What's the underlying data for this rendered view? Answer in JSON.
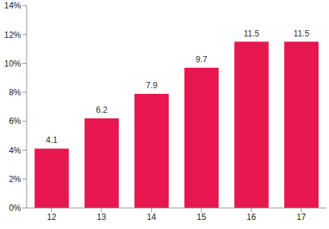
{
  "chart_data": {
    "type": "bar",
    "categories": [
      "12",
      "13",
      "14",
      "15",
      "16",
      "17"
    ],
    "values": [
      4.1,
      6.2,
      7.9,
      9.7,
      11.5,
      11.5
    ],
    "color": "#e8174f",
    "ylim": [
      0,
      14
    ],
    "yticks": [
      {
        "value": 0,
        "label": "0%"
      },
      {
        "value": 2,
        "label": "2%"
      },
      {
        "value": 4,
        "label": "4%"
      },
      {
        "value": 6,
        "label": "6%"
      },
      {
        "value": 8,
        "label": "8%"
      },
      {
        "value": 10,
        "label": "10%"
      },
      {
        "value": 12,
        "label": "12%"
      },
      {
        "value": 14,
        "label": "14%"
      }
    ],
    "grid": false,
    "data_labels": true
  }
}
